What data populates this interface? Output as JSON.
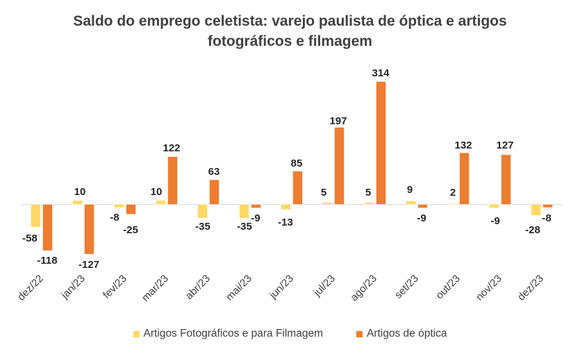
{
  "chart_data": {
    "type": "bar",
    "title_lines": [
      "Saldo do emprego celetista: varejo paulista de óptica e artigos",
      "fotográficos e filmagem"
    ],
    "categories": [
      "dez/22",
      "jan/23",
      "fev/23",
      "mar/23",
      "abr/23",
      "mai/23",
      "jun/23",
      "jul/23",
      "ago/23",
      "set/23",
      "out/23",
      "nov/23",
      "dez/23"
    ],
    "series": [
      {
        "name": "Artigos Fotográficos e para Filmagem",
        "color": "#FFD966",
        "values": [
          -58,
          10,
          -8,
          10,
          -35,
          -35,
          -13,
          5,
          5,
          9,
          2,
          -9,
          -28
        ],
        "labels": [
          "-58",
          "10",
          "-8",
          "10",
          "-35",
          "-35",
          "-13",
          "5",
          "5",
          "9",
          "2",
          "",
          ""
        ]
      },
      {
        "name": "Artigos de óptica",
        "color": "#ED7D31",
        "values": [
          -118,
          -127,
          -25,
          122,
          63,
          -9,
          85,
          197,
          314,
          -9,
          132,
          127,
          -8
        ],
        "labels": [
          "-118",
          "-127",
          "-25",
          "122",
          "63",
          "-9",
          "85",
          "197",
          "314",
          "-9",
          "132",
          "127",
          "-8"
        ]
      }
    ],
    "extra_labels": [
      "-9",
      "-28"
    ],
    "ylim": [
      -140,
      330
    ],
    "grid": false,
    "legend_position": "bottom"
  }
}
